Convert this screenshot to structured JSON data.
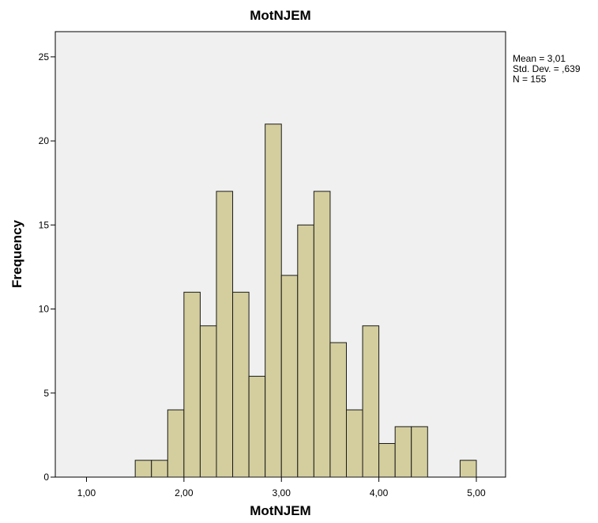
{
  "chart_data": {
    "type": "bar",
    "title": "MotNJEM",
    "xlabel": "MotNJEM",
    "ylabel": "Frequency",
    "bin_width": 0.1667,
    "bins": [
      {
        "x0": 1.5,
        "value": 1
      },
      {
        "x0": 1.6667,
        "value": 1
      },
      {
        "x0": 1.8333,
        "value": 4
      },
      {
        "x0": 2.0,
        "value": 11
      },
      {
        "x0": 2.1667,
        "value": 9
      },
      {
        "x0": 2.3333,
        "value": 17
      },
      {
        "x0": 2.5,
        "value": 11
      },
      {
        "x0": 2.6667,
        "value": 6
      },
      {
        "x0": 2.8333,
        "value": 21
      },
      {
        "x0": 3.0,
        "value": 12
      },
      {
        "x0": 3.1667,
        "value": 15
      },
      {
        "x0": 3.3333,
        "value": 17
      },
      {
        "x0": 3.5,
        "value": 8
      },
      {
        "x0": 3.6667,
        "value": 4
      },
      {
        "x0": 3.8333,
        "value": 9
      },
      {
        "x0": 4.0,
        "value": 2
      },
      {
        "x0": 4.1667,
        "value": 3
      },
      {
        "x0": 4.3333,
        "value": 3
      },
      {
        "x0": 4.8333,
        "value": 1
      }
    ],
    "xlim": [
      0.68,
      5.3
    ],
    "ylim": [
      0,
      26.5
    ],
    "x_ticks": [
      {
        "value": 1,
        "label": "1,00"
      },
      {
        "value": 2,
        "label": "2,00"
      },
      {
        "value": 3,
        "label": "3,00"
      },
      {
        "value": 4,
        "label": "4,00"
      },
      {
        "value": 5,
        "label": "5,00"
      }
    ],
    "y_ticks": [
      {
        "value": 0,
        "label": "0"
      },
      {
        "value": 5,
        "label": "5"
      },
      {
        "value": 10,
        "label": "10"
      },
      {
        "value": 15,
        "label": "15"
      },
      {
        "value": 20,
        "label": "20"
      },
      {
        "value": 25,
        "label": "25"
      }
    ],
    "stats": {
      "mean": "Mean = 3,01",
      "std": "Std. Dev. = ,639",
      "n": "N = 155"
    },
    "colors": {
      "plot_bg": "#f0f0f0",
      "bar_fill": "#d4ce9e",
      "bar_stroke": "#1a1a1a",
      "axis": "#000000"
    },
    "grid": false
  }
}
